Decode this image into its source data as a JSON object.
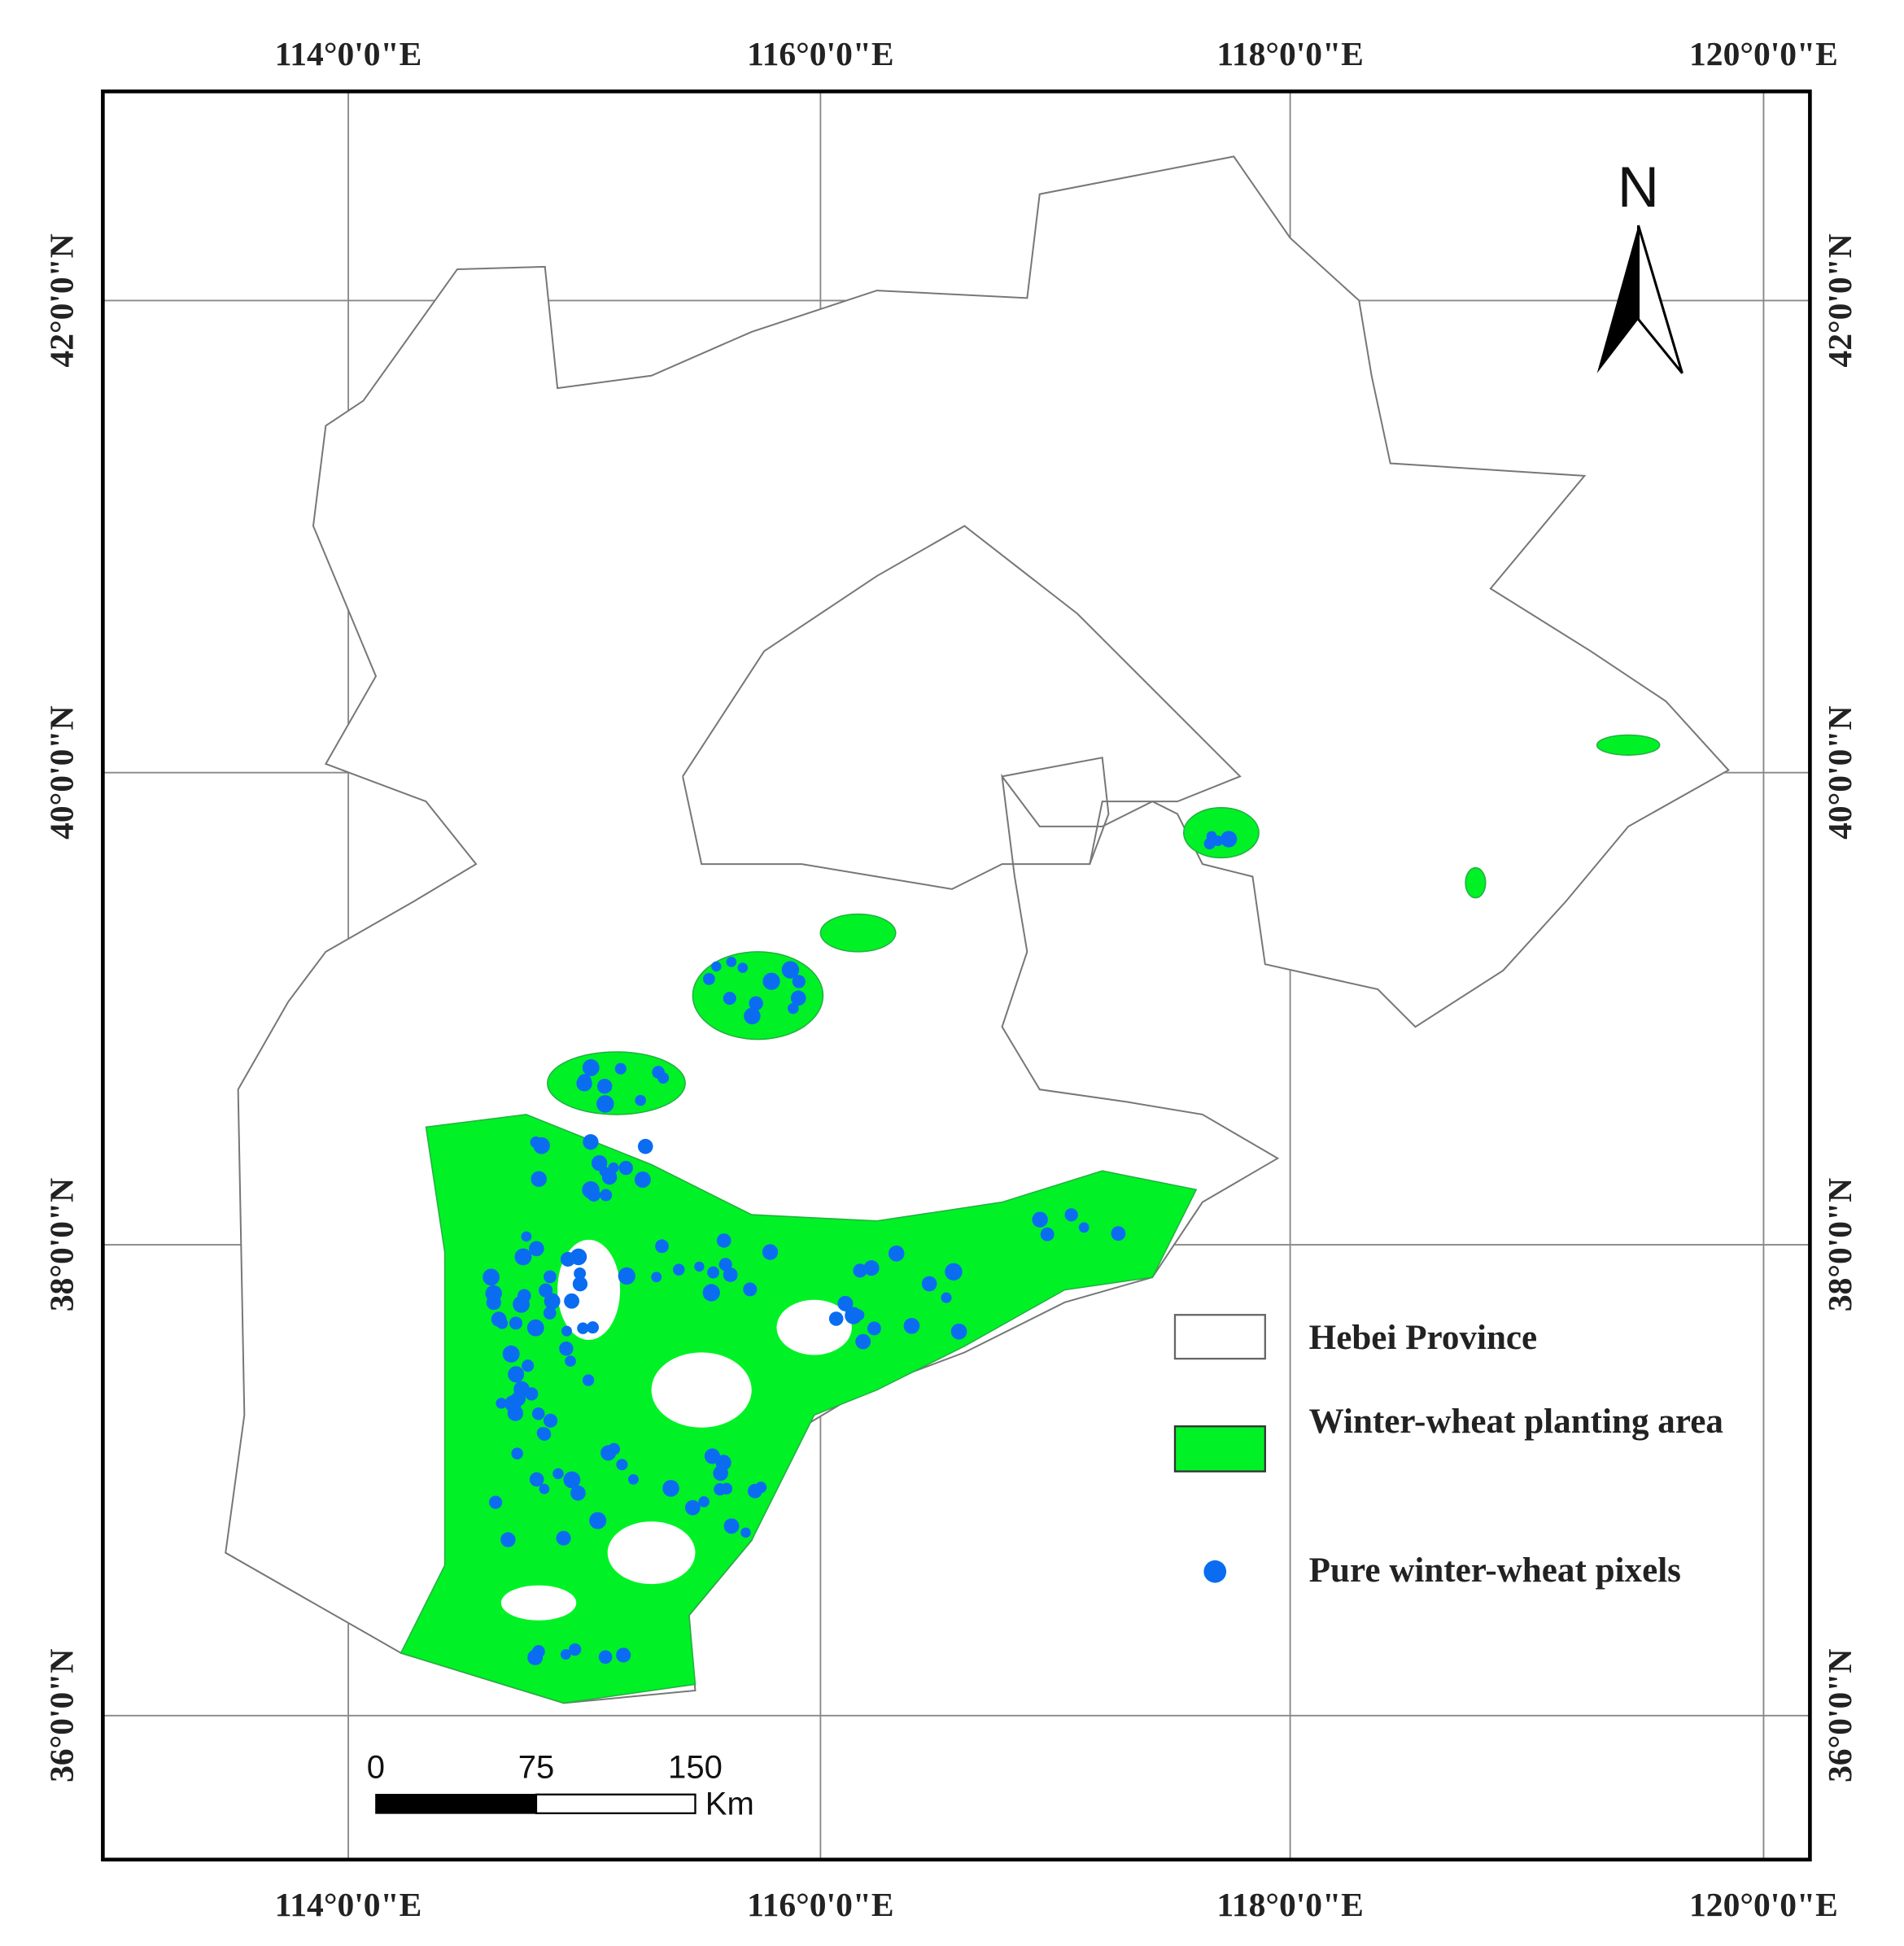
{
  "graticule": {
    "longitudes": [
      "114°0'0\"E",
      "116°0'0\"E",
      "118°0'0\"E",
      "120°0'0\"E"
    ],
    "latitudes": [
      "42°0'0\"N",
      "40°0'0\"N",
      "38°0'0\"N",
      "36°0'0\"N"
    ]
  },
  "north_arrow": "N",
  "scale_bar": {
    "ticks": [
      "0",
      "75",
      "150"
    ],
    "unit": "Km"
  },
  "legend": [
    {
      "label": "Hebei Province"
    },
    {
      "label": "Winter-wheat planting area"
    },
    {
      "label": "Pure winter-wheat pixels"
    }
  ]
}
